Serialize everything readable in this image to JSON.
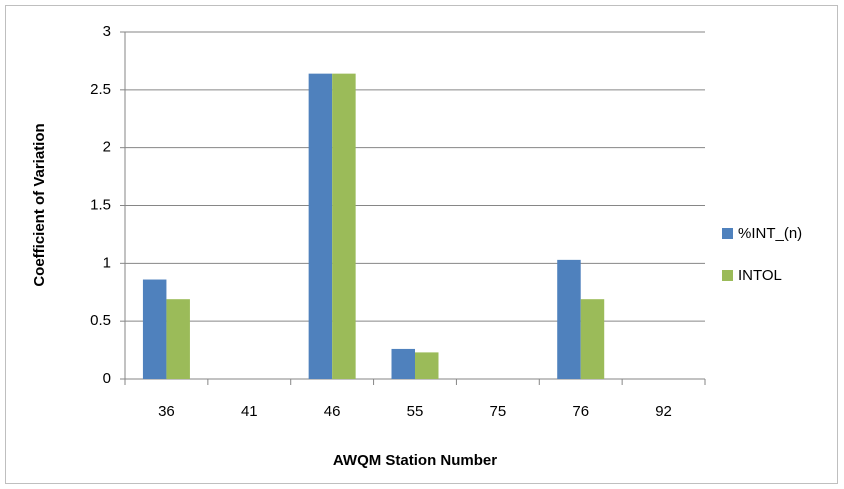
{
  "chart_data": {
    "type": "bar",
    "categories": [
      "36",
      "41",
      "46",
      "55",
      "75",
      "76",
      "92"
    ],
    "series": [
      {
        "name": "%INT_(n)",
        "color": "#4f81bd",
        "values": [
          0.86,
          0,
          2.64,
          0.26,
          0,
          1.03,
          0
        ]
      },
      {
        "name": "INTOL",
        "color": "#9bbb59",
        "values": [
          0.69,
          0,
          2.64,
          0.23,
          0,
          0.69,
          0
        ]
      }
    ],
    "x_label": "AWQM Station Number",
    "y_label": "Coefficient of Variation",
    "ylim": [
      0,
      3
    ],
    "yticks": [
      0,
      0.5,
      1,
      1.5,
      2,
      2.5,
      3
    ],
    "grid": true,
    "legend": "right"
  }
}
